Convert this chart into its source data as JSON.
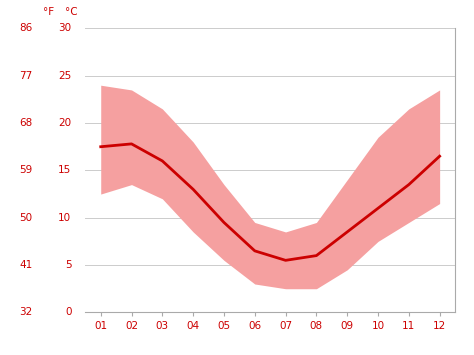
{
  "months": [
    1,
    2,
    3,
    4,
    5,
    6,
    7,
    8,
    9,
    10,
    11,
    12
  ],
  "month_labels": [
    "01",
    "02",
    "03",
    "04",
    "05",
    "06",
    "07",
    "08",
    "09",
    "10",
    "11",
    "12"
  ],
  "mean_temp_c": [
    17.5,
    17.8,
    16.0,
    13.0,
    9.5,
    6.5,
    5.5,
    6.0,
    8.5,
    11.0,
    13.5,
    16.5
  ],
  "max_temp_c": [
    24.0,
    23.5,
    21.5,
    18.0,
    13.5,
    9.5,
    8.5,
    9.5,
    14.0,
    18.5,
    21.5,
    23.5
  ],
  "min_temp_c": [
    12.5,
    13.5,
    12.0,
    8.5,
    5.5,
    3.0,
    2.5,
    2.5,
    4.5,
    7.5,
    9.5,
    11.5
  ],
  "yticks_c": [
    0,
    5,
    10,
    15,
    20,
    25,
    30
  ],
  "yticks_f": [
    32,
    41,
    50,
    59,
    68,
    77,
    86
  ],
  "line_color": "#cc0000",
  "band_color": "#f5a0a0",
  "bg_color": "#ffffff",
  "grid_color": "#cccccc",
  "tick_color": "#cc0000",
  "figsize": [
    4.74,
    3.55
  ],
  "dpi": 100
}
